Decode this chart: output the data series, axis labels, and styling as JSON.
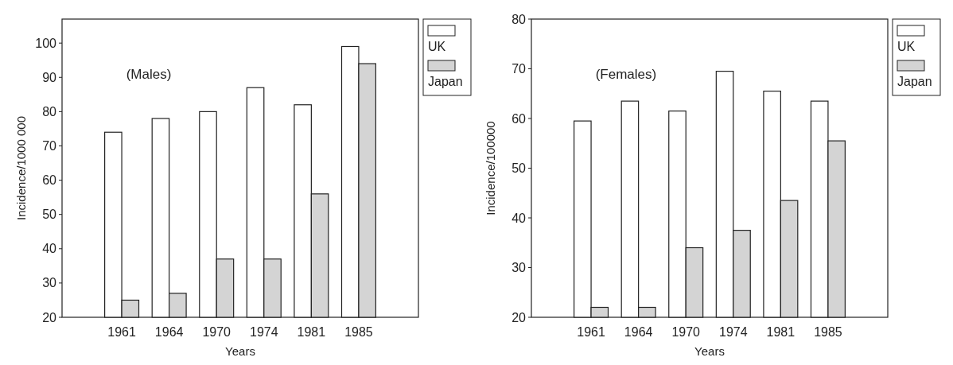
{
  "chart_data": [
    {
      "type": "bar",
      "categories": [
        "1961",
        "1964",
        "1970",
        "1974",
        "1981",
        "1985"
      ],
      "xlabel": "Years",
      "ylabel": "Incidence/1000 000",
      "annotations": [
        "(Males)"
      ],
      "ylim": [
        20,
        107
      ],
      "yticks": [
        20,
        30,
        40,
        50,
        60,
        70,
        80,
        90,
        100
      ],
      "legend": "top right",
      "grid": false,
      "series": [
        {
          "name": "UK",
          "color": "#ffffff",
          "values": [
            74,
            78,
            80,
            87,
            82,
            99
          ]
        },
        {
          "name": "Japan",
          "color": "#d4d4d4",
          "values": [
            25,
            27,
            37,
            37,
            56,
            94
          ]
        }
      ]
    },
    {
      "type": "bar",
      "categories": [
        "1961",
        "1964",
        "1970",
        "1974",
        "1981",
        "1985"
      ],
      "xlabel": "Years",
      "ylabel": "Incidence/100000",
      "annotations": [
        "(Females)"
      ],
      "ylim": [
        20,
        80
      ],
      "yticks": [
        20,
        30,
        40,
        50,
        60,
        70,
        80
      ],
      "legend": "top right",
      "grid": false,
      "series": [
        {
          "name": "UK",
          "color": "#ffffff",
          "values": [
            59.5,
            63.5,
            61.5,
            69.5,
            65.5,
            63.5
          ]
        },
        {
          "name": "Japan",
          "color": "#d4d4d4",
          "values": [
            22,
            22,
            34,
            37.5,
            43.5,
            55.5
          ]
        }
      ]
    }
  ]
}
